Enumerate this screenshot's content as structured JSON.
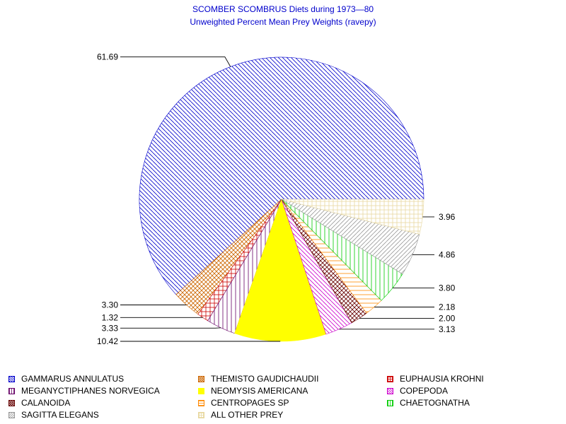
{
  "title": "SCOMBER SCOMBRUS Diets during 1973—80",
  "subtitle": "Unweighted Percent Mean Prey Weights (ravepy)",
  "chart_data": {
    "type": "pie",
    "title": "SCOMBER SCOMBRUS Diets during 1973—80",
    "subtitle": "Unweighted Percent Mean Prey Weights (ravepy)",
    "slices": [
      {
        "name": "GAMMARUS ANNULATUS",
        "value": 61.69,
        "label": "61.69",
        "color": "#0000cc",
        "pattern": "diag-down"
      },
      {
        "name": "THEMISTO GAUDICHAUDII",
        "value": 3.3,
        "label": "3.30",
        "color": "#cc6600",
        "pattern": "crosshatch"
      },
      {
        "name": "EUPHAUSIA KROHNI",
        "value": 1.32,
        "label": "1.32",
        "color": "#cc0000",
        "pattern": "grid"
      },
      {
        "name": "MEGANYCTIPHANES NORVEGICA",
        "value": 3.33,
        "label": "3.33",
        "color": "#660066",
        "pattern": "vertical"
      },
      {
        "name": "NEOMYSIS AMERICANA",
        "value": 10.42,
        "label": "10.42",
        "color": "#ffff00",
        "pattern": "solid"
      },
      {
        "name": "COPEPODA",
        "value": 3.13,
        "label": "3.13",
        "color": "#cc00cc",
        "pattern": "diag-down"
      },
      {
        "name": "CALANOIDA",
        "value": 2.0,
        "label": "2.00",
        "color": "#660000",
        "pattern": "crosshatch"
      },
      {
        "name": "CENTROPAGES SP",
        "value": 2.18,
        "label": "2.18",
        "color": "#ff8800",
        "pattern": "horizontal"
      },
      {
        "name": "CHAETOGNATHA",
        "value": 3.8,
        "label": "3.80",
        "color": "#00cc00",
        "pattern": "vertical"
      },
      {
        "name": "SAGITTA ELEGANS",
        "value": 4.86,
        "label": "4.86",
        "color": "#999999",
        "pattern": "diag-up"
      },
      {
        "name": "ALL OTHER PREY",
        "value": 3.96,
        "label": "3.96",
        "color": "#e8d8a0",
        "pattern": "grid"
      }
    ],
    "legend_placement": "bottom"
  },
  "legend": [
    {
      "label": "GAMMARUS ANNULATUS"
    },
    {
      "label": "THEMISTO GAUDICHAUDII"
    },
    {
      "label": "EUPHAUSIA KROHNI"
    },
    {
      "label": "MEGANYCTIPHANES NORVEGICA"
    },
    {
      "label": "NEOMYSIS AMERICANA"
    },
    {
      "label": "COPEPODA"
    },
    {
      "label": "CALANOIDA"
    },
    {
      "label": "CENTROPAGES SP"
    },
    {
      "label": "CHAETOGNATHA"
    },
    {
      "label": "SAGITTA ELEGANS"
    },
    {
      "label": "ALL OTHER PREY"
    }
  ]
}
